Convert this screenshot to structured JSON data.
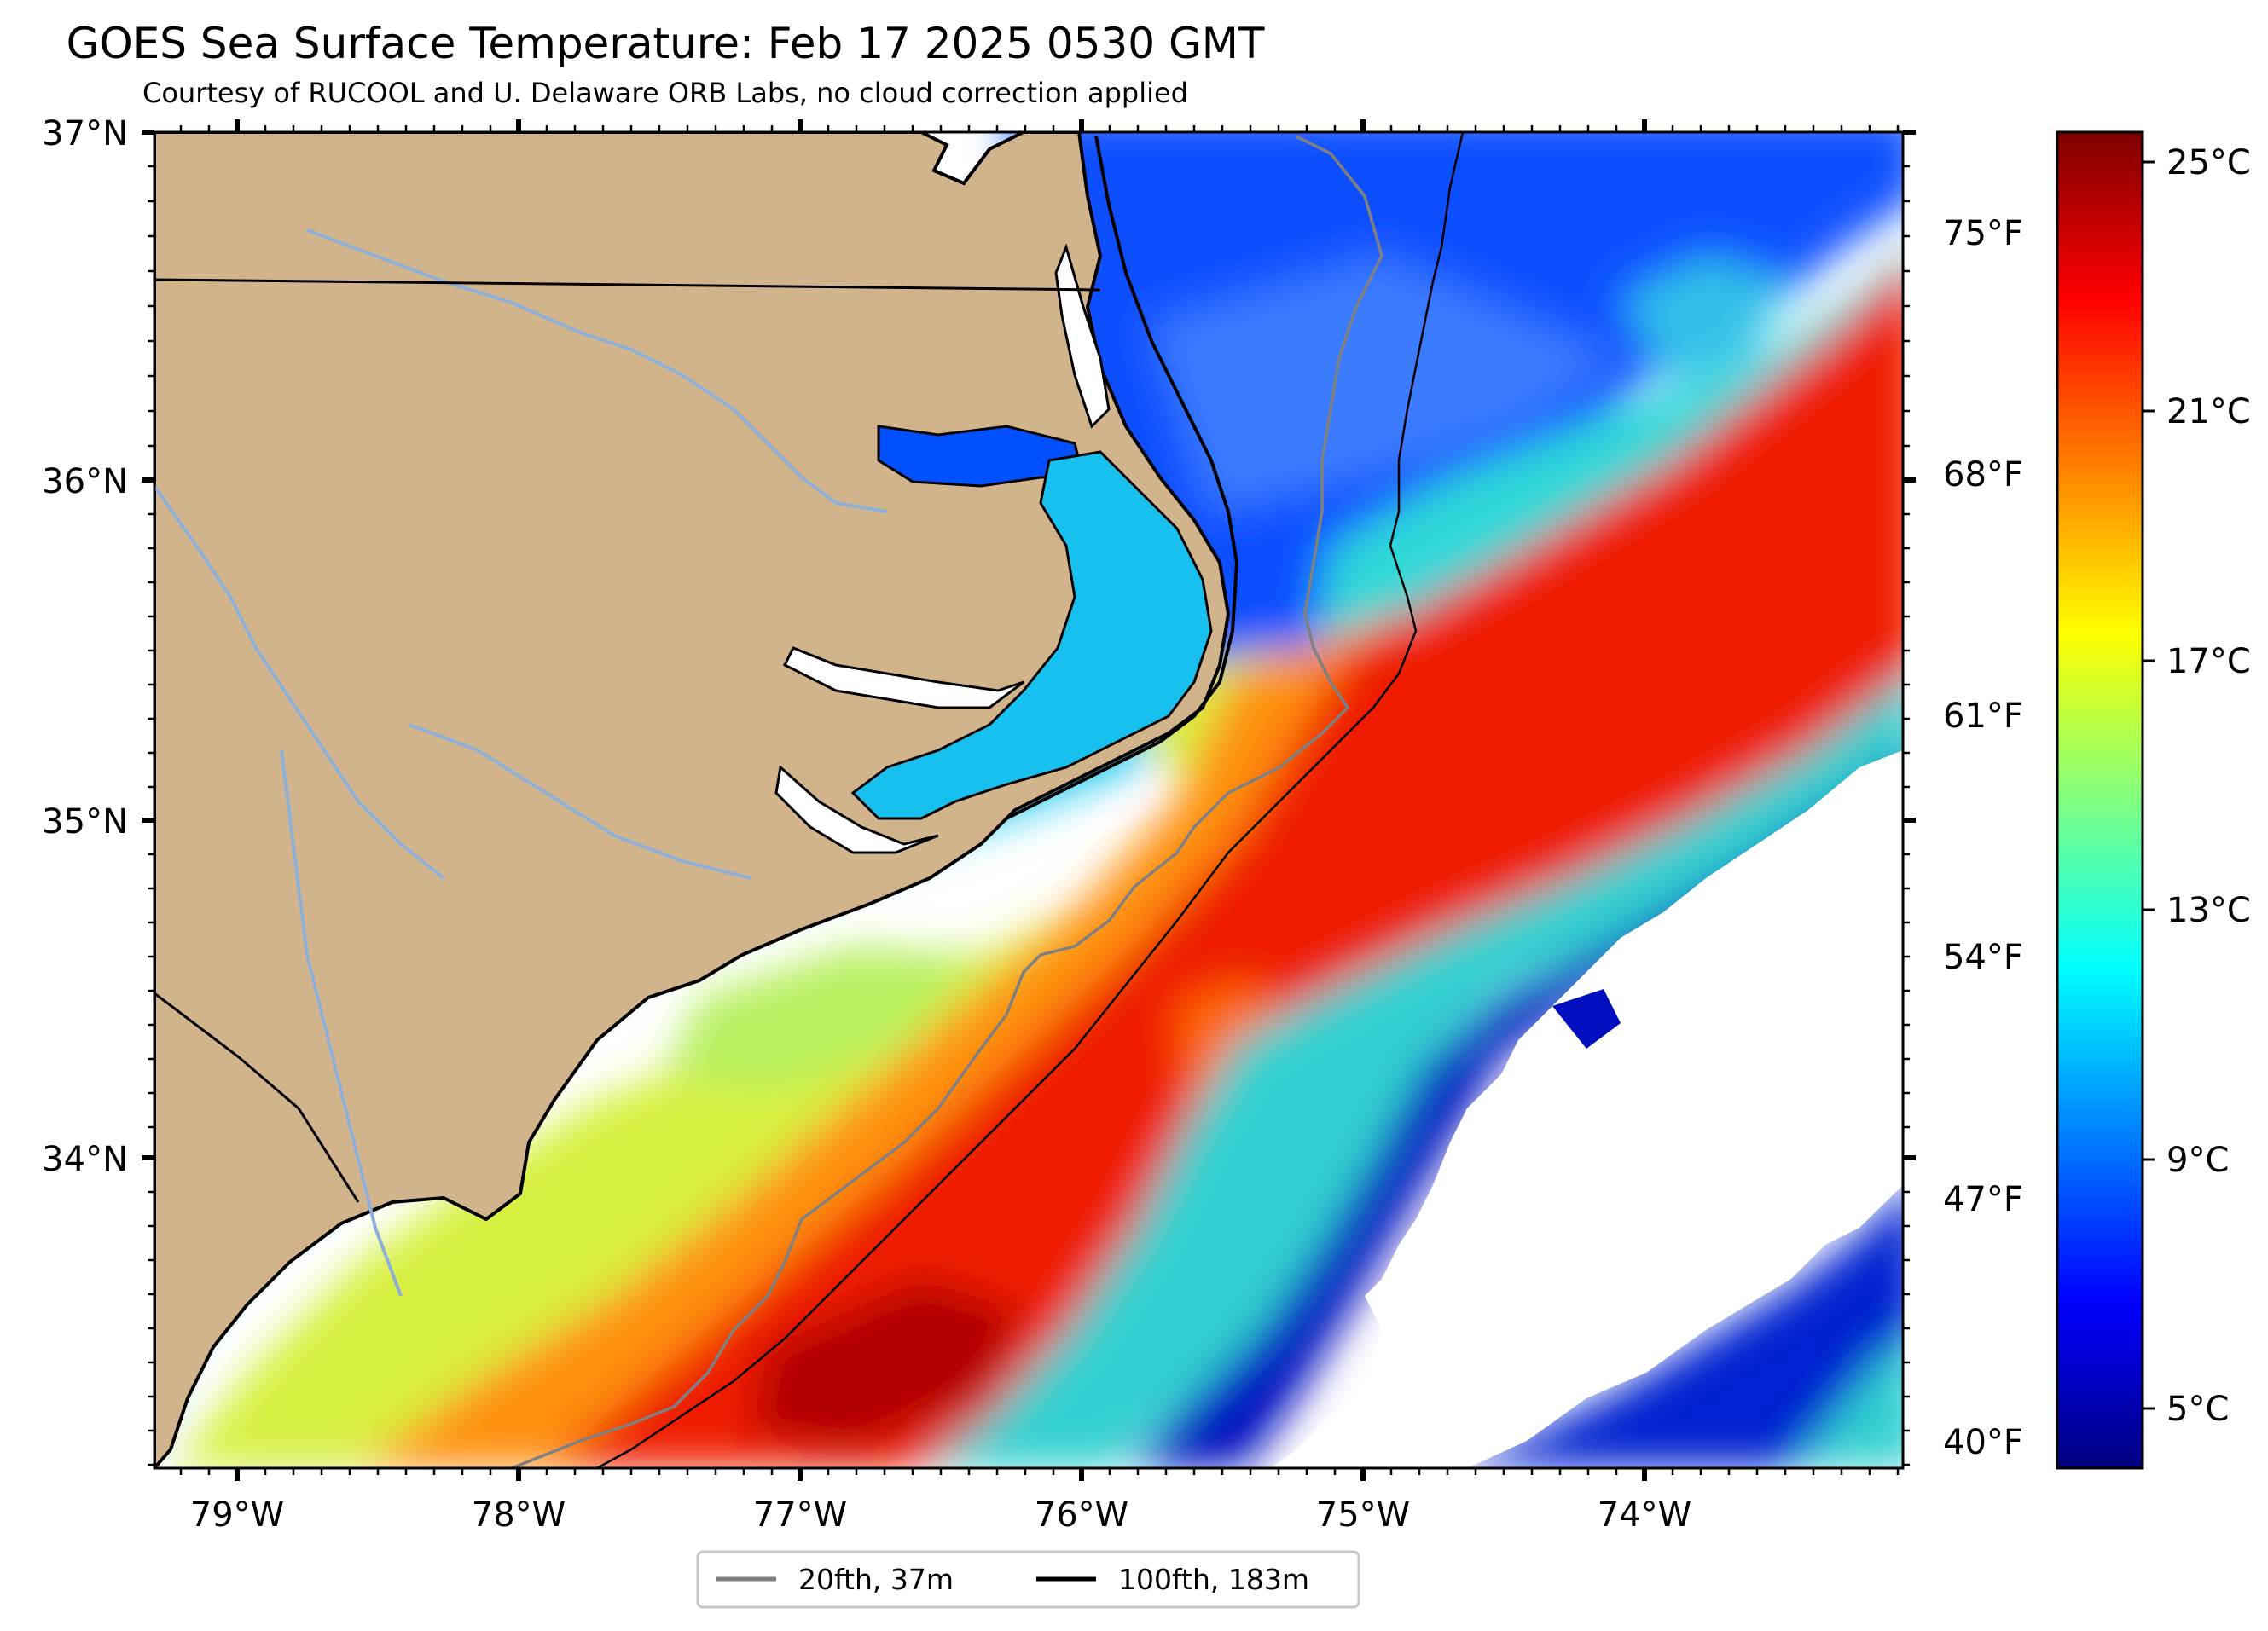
{
  "title": "GOES Sea Surface Temperature: Feb 17 2025 0530 GMT",
  "subtitle": "Courtesy of RUCOOL and U. Delaware ORB Labs, no cloud correction applied",
  "axes": {
    "lat_ticks": [
      "37°N",
      "36°N",
      "35°N",
      "34°N"
    ],
    "lon_ticks": [
      "79°W",
      "78°W",
      "77°W",
      "76°W",
      "75°W",
      "74°W"
    ],
    "fahrenheit_ticks": [
      "75°F",
      "68°F",
      "61°F",
      "54°F",
      "47°F",
      "40°F"
    ]
  },
  "colorbar": {
    "ticks": [
      "25°C",
      "21°C",
      "17°C",
      "13°C",
      "9°C",
      "5°C"
    ],
    "colormap": [
      "#00007f",
      "#0000ff",
      "#0080ff",
      "#00ffff",
      "#80ff80",
      "#ffff00",
      "#ff8000",
      "#ff0000",
      "#7f0000"
    ]
  },
  "legend": {
    "items": [
      {
        "label": "20fth, 37m",
        "color": "#808080"
      },
      {
        "label": "100fth, 183m",
        "color": "#000000"
      }
    ]
  },
  "colors": {
    "land": "#d2b48c",
    "rivers": "#8fb0d6",
    "no_data": "#ffffff"
  }
}
